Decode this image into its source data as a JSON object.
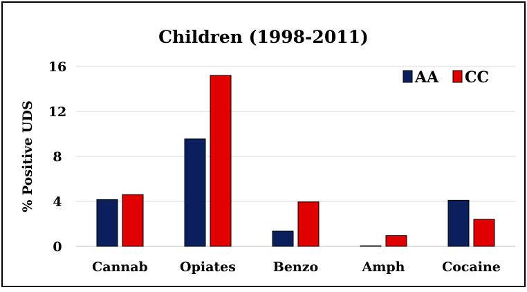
{
  "chart_data": {
    "type": "bar",
    "title": "Children (1998-2011)",
    "ylabel": "% Positive UDS",
    "xlabel": "",
    "categories": [
      "Cannab",
      "Opiates",
      "Benzo",
      "Amph",
      "Cocaine"
    ],
    "series": [
      {
        "name": "AA",
        "color": "#0a1f5c",
        "values": [
          4.15,
          9.55,
          1.35,
          0.05,
          4.1
        ]
      },
      {
        "name": "CC",
        "color": "#e00000",
        "values": [
          4.6,
          15.2,
          3.95,
          0.95,
          2.4
        ]
      }
    ],
    "ylim": [
      0,
      16
    ],
    "yticks": [
      "0",
      "4",
      "8",
      "12",
      "16"
    ],
    "grid": true,
    "legend_position": "top-right"
  }
}
